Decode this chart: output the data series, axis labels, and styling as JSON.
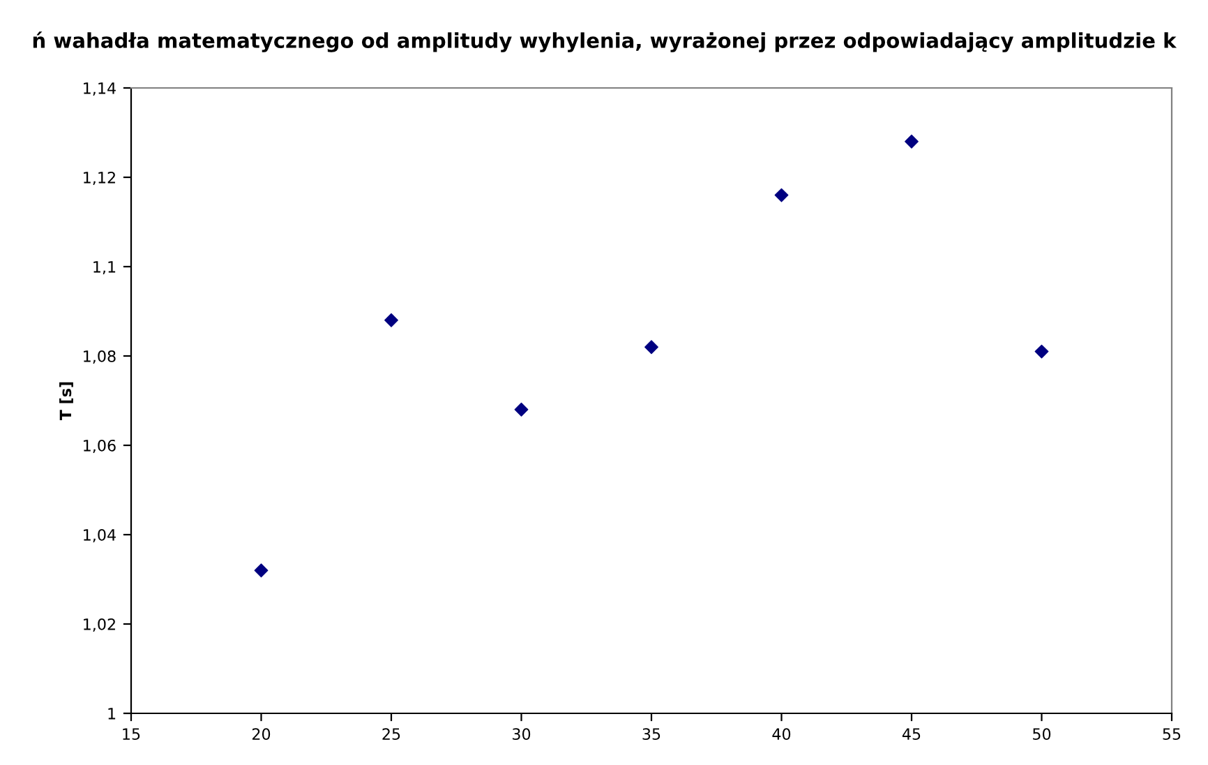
{
  "chart_data": {
    "type": "scatter",
    "title": "ń wahadła matematycznego od amplitudy wyhylenia, wyrażonej przez odpowiadający amplitudzie k",
    "ylabel": "T [s]",
    "x": [
      20,
      25,
      30,
      35,
      40,
      45,
      50
    ],
    "series": [
      {
        "color": "#000080",
        "values": [
          1.032,
          1.088,
          1.068,
          1.082,
          1.116,
          1.128,
          1.081
        ]
      }
    ],
    "marker": "diamond",
    "grid": false,
    "legend": false,
    "xlim": [
      15,
      55
    ],
    "xticks": [
      15,
      20,
      25,
      30,
      35,
      40,
      45,
      50,
      55
    ],
    "ylim": [
      1,
      1.14
    ],
    "yticks": [
      1,
      {
        "value": 1.02,
        "label": "1,02"
      },
      {
        "value": 1.04,
        "label": "1,04"
      },
      {
        "value": 1.06,
        "label": "1,06"
      },
      {
        "value": 1.08,
        "label": "1,08"
      },
      {
        "value": 1.1,
        "label": "1,1"
      },
      {
        "value": 1.12,
        "label": "1,12"
      },
      {
        "value": 1.14,
        "label": "1,14"
      }
    ]
  }
}
